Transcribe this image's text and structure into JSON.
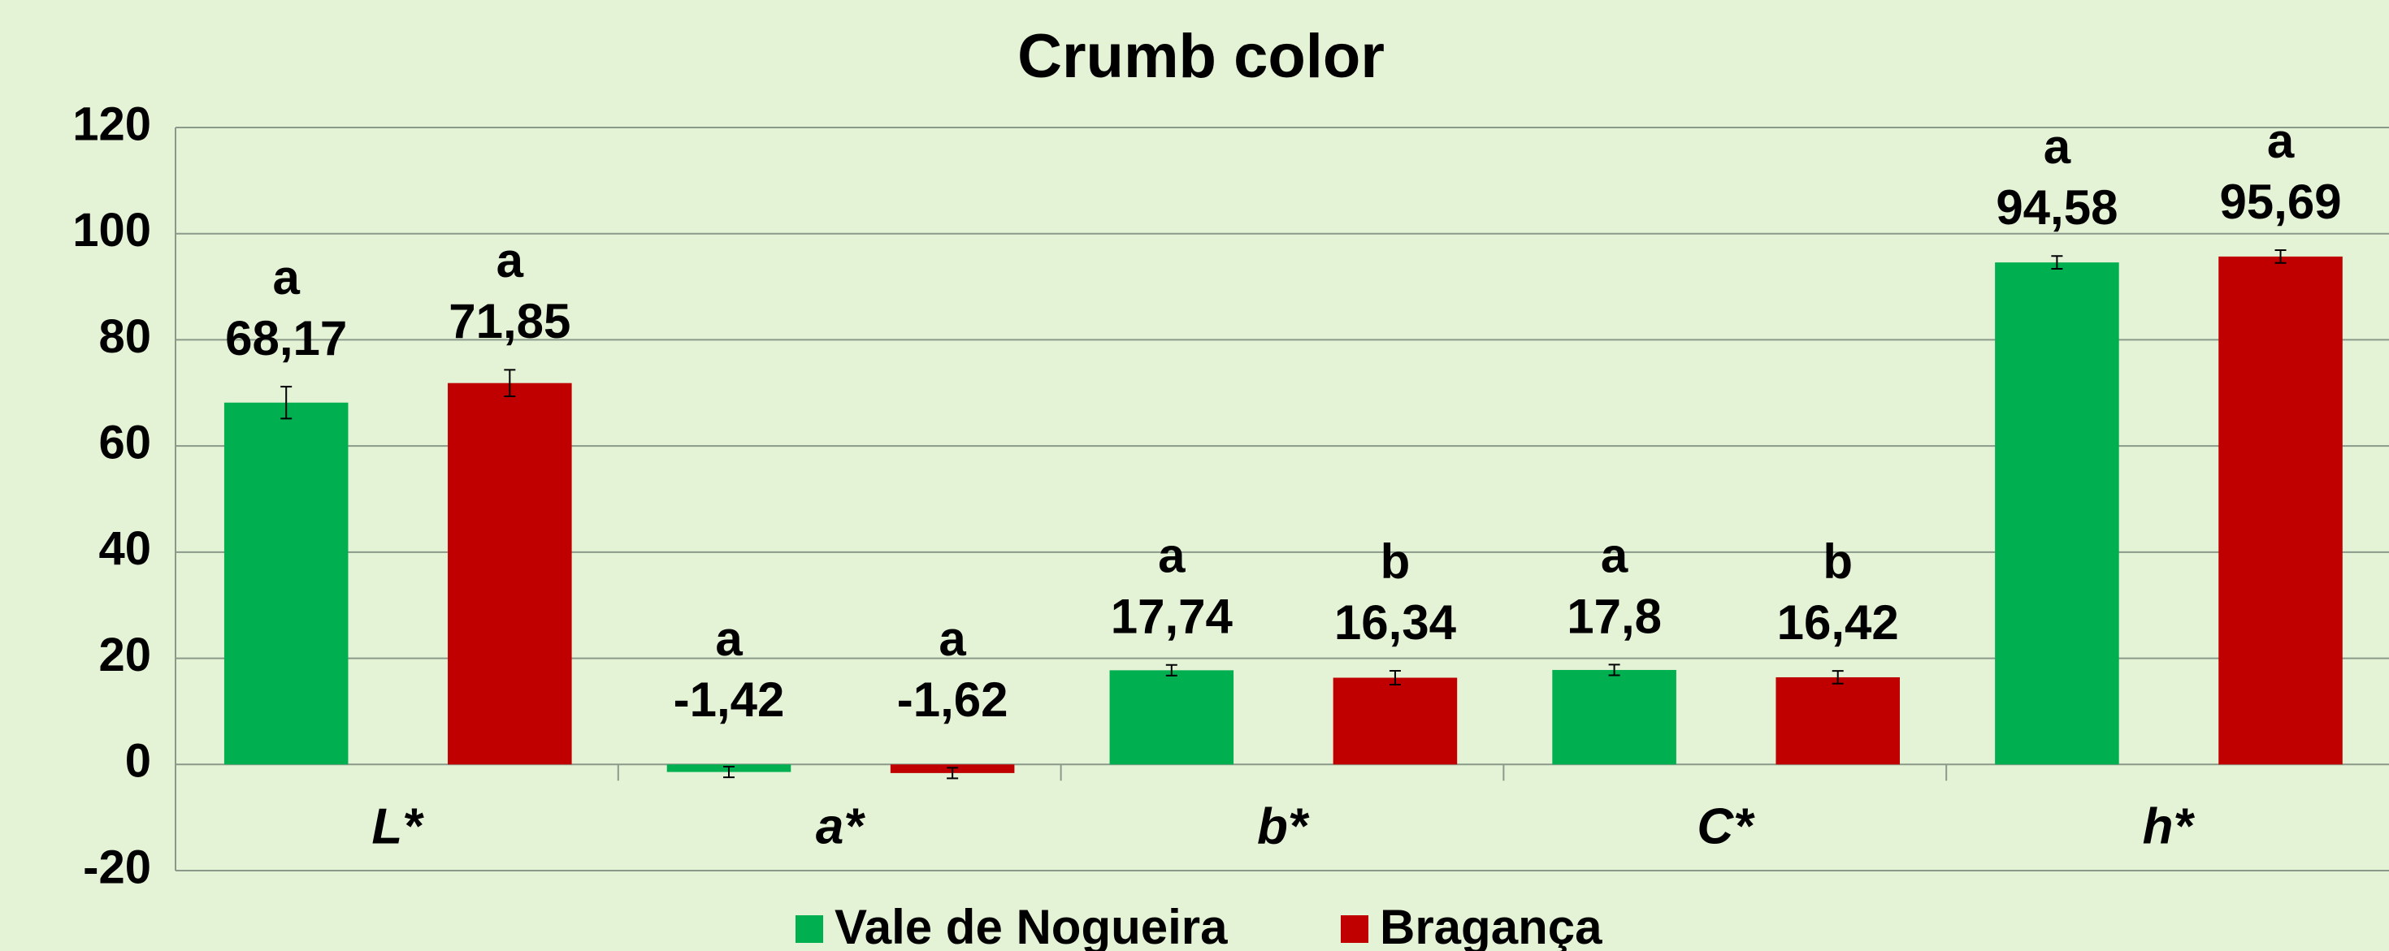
{
  "chart_data": {
    "type": "bar",
    "title": "Crumb color",
    "categories": [
      "L*",
      "a*",
      "b*",
      "C*",
      "h*"
    ],
    "series": [
      {
        "name": "Vale de Nogueira",
        "color": "#00b050",
        "values": [
          68.17,
          -1.42,
          17.74,
          17.8,
          94.58
        ],
        "value_labels": [
          "68,17",
          "-1,42",
          "17,74",
          "17,8",
          "94,58"
        ],
        "errors": [
          3,
          1,
          1,
          1,
          1.2
        ],
        "letters": [
          "a",
          "a",
          "a",
          "a",
          "a"
        ]
      },
      {
        "name": "Bragança",
        "color": "#c00000",
        "values": [
          71.85,
          -1.62,
          16.34,
          16.42,
          95.69
        ],
        "value_labels": [
          "71,85",
          "-1,62",
          "16,34",
          "16,42",
          "95,69"
        ],
        "errors": [
          2.5,
          1,
          1.3,
          1.2,
          1.2
        ],
        "letters": [
          "a",
          "a",
          "b",
          "b",
          "a"
        ]
      }
    ],
    "ylim": [
      -20,
      120
    ],
    "yticks": [
      -20,
      0,
      20,
      40,
      60,
      80,
      100,
      120
    ],
    "grid": true,
    "legend": "bottom"
  }
}
